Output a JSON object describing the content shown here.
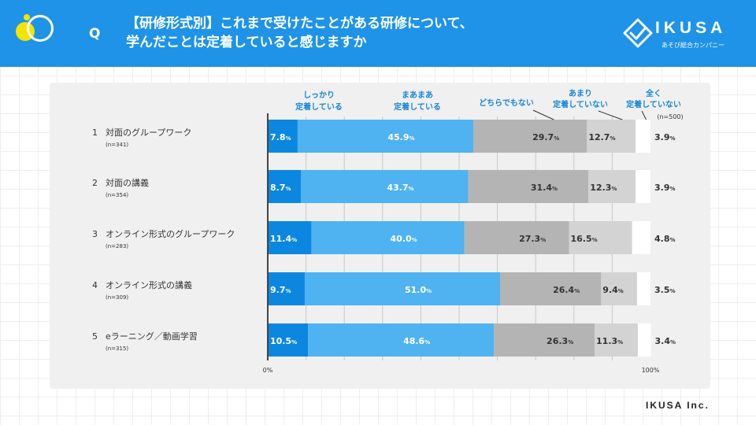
{
  "header": {
    "q": "Q",
    "title_line1": "【研修形式別】これまで受けたことがある研修について、",
    "title_line2": "学んだことは定着していると感じますか",
    "logo_text": "IKUSA",
    "logo_sub": "あそび総合カンパニー"
  },
  "footer": {
    "company": "IKUSA Inc."
  },
  "colors": {
    "header_bg": "#1e93e8",
    "series": [
      "#0b87e0",
      "#4fb2f1",
      "#b4b4b4",
      "#d3d3d3",
      "#ffffff"
    ],
    "legend_text": "#1585d6"
  },
  "chart_data": {
    "type": "bar",
    "orientation": "horizontal",
    "stacked": true,
    "total_n": "(n=500)",
    "categories": [
      {
        "num": "1",
        "label": "対面のグループワーク",
        "n": "(n=341)"
      },
      {
        "num": "2",
        "label": "対面の講義",
        "n": "(n=354)"
      },
      {
        "num": "3",
        "label": "オンライン形式のグループワーク",
        "n": "(n=283)"
      },
      {
        "num": "4",
        "label": "オンライン形式の講義",
        "n": "(n=309)"
      },
      {
        "num": "5",
        "label": "eラーニング／動画学習",
        "n": "(n=315)"
      }
    ],
    "series": [
      {
        "name": "しっかり 定着している",
        "legend_lines": [
          "しっかり",
          "定着している"
        ],
        "values": [
          7.8,
          8.7,
          11.4,
          9.7,
          10.5
        ]
      },
      {
        "name": "まあまあ 定着している",
        "legend_lines": [
          "まあまあ",
          "定着している"
        ],
        "values": [
          45.9,
          43.7,
          40.0,
          51.0,
          48.6
        ]
      },
      {
        "name": "どちらでもない",
        "legend_lines": [
          "どちらでもない"
        ],
        "values": [
          29.7,
          31.4,
          27.3,
          26.4,
          26.3
        ]
      },
      {
        "name": "あまり 定着していない",
        "legend_lines": [
          "あまり",
          "定着していない"
        ],
        "values": [
          12.7,
          12.3,
          16.5,
          9.4,
          11.3
        ]
      },
      {
        "name": "全く 定着していない",
        "legend_lines": [
          "全く",
          "定着していない"
        ],
        "values": [
          3.9,
          3.9,
          4.8,
          3.5,
          3.4
        ]
      }
    ],
    "value_unit": "%",
    "xlim": [
      0,
      100
    ],
    "x_tick_labels": [
      "0%",
      "100%"
    ],
    "grid": true
  }
}
